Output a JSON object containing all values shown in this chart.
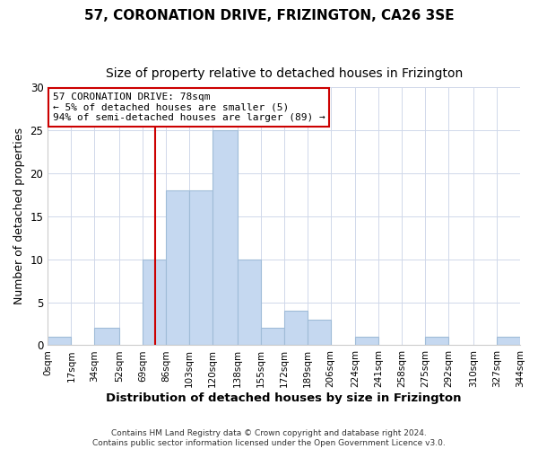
{
  "title": "57, CORONATION DRIVE, FRIZINGTON, CA26 3SE",
  "subtitle": "Size of property relative to detached houses in Frizington",
  "xlabel": "Distribution of detached houses by size in Frizington",
  "ylabel": "Number of detached properties",
  "bin_edges": [
    0,
    17,
    34,
    52,
    69,
    86,
    103,
    120,
    138,
    155,
    172,
    189,
    206,
    224,
    241,
    258,
    275,
    292,
    310,
    327,
    344
  ],
  "counts": [
    1,
    0,
    2,
    0,
    10,
    18,
    18,
    25,
    10,
    2,
    4,
    3,
    0,
    1,
    0,
    0,
    1,
    0,
    0,
    1
  ],
  "tick_labels": [
    "0sqm",
    "17sqm",
    "34sqm",
    "52sqm",
    "69sqm",
    "86sqm",
    "103sqm",
    "120sqm",
    "138sqm",
    "155sqm",
    "172sqm",
    "189sqm",
    "206sqm",
    "224sqm",
    "241sqm",
    "258sqm",
    "275sqm",
    "292sqm",
    "310sqm",
    "327sqm",
    "344sqm"
  ],
  "bar_color": "#c5d8f0",
  "bar_edge_color": "#a0bcd8",
  "property_value": 78,
  "vline_color": "#cc0000",
  "annotation_title": "57 CORONATION DRIVE: 78sqm",
  "annotation_line1": "← 5% of detached houses are smaller (5)",
  "annotation_line2": "94% of semi-detached houses are larger (89) →",
  "annotation_box_edge": "#cc0000",
  "annotation_box_face": "#ffffff",
  "ylim": [
    0,
    30
  ],
  "yticks": [
    0,
    5,
    10,
    15,
    20,
    25,
    30
  ],
  "fig_background_color": "#ffffff",
  "plot_background": "#ffffff",
  "grid_color": "#d0d8ea",
  "footer_line1": "Contains HM Land Registry data © Crown copyright and database right 2024.",
  "footer_line2": "Contains public sector information licensed under the Open Government Licence v3.0.",
  "title_fontsize": 11,
  "subtitle_fontsize": 10,
  "xlabel_fontsize": 9.5,
  "ylabel_fontsize": 9
}
